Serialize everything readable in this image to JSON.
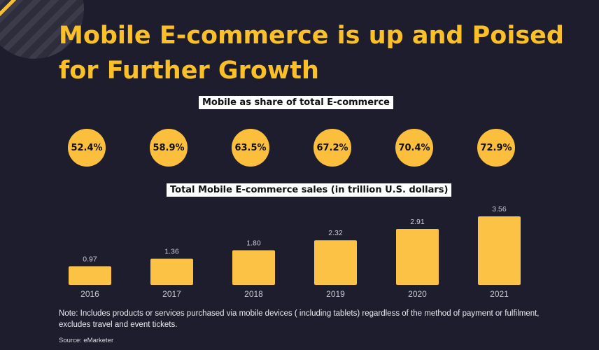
{
  "title_line1": "Mobile E-commerce is up and Poised",
  "title_line2": "for Further Growth",
  "share_label": "Mobile as share of  total E-commerce",
  "share_values": [
    "52.4%",
    "58.9%",
    "63.5%",
    "67.2%",
    "70.4%",
    "72.9%"
  ],
  "sales_label": "Total Mobile E-commerce sales (in trillion U.S. dollars)",
  "note": "Note: Includes products or services purchased via mobile devices ( including tablets) regardless of the method of payment or fulfilment, excludes travel and event tickets.",
  "source": "Source: eMarketer",
  "colors": {
    "accent": "#fbbf27",
    "bar": "#fcc246",
    "background": "#1e1d2d"
  },
  "chart_data": {
    "type": "bar",
    "title": "Total Mobile E-commerce sales (in trillion U.S. dollars)",
    "categories": [
      "2016",
      "2017",
      "2018",
      "2019",
      "2020",
      "2021"
    ],
    "values": [
      0.97,
      1.36,
      1.8,
      2.32,
      2.91,
      3.56
    ],
    "value_labels": [
      "0.97",
      "1.36",
      "1.80",
      "2.32",
      "2.91",
      "3.56"
    ],
    "xlabel": "",
    "ylabel": "",
    "grid": false
  }
}
